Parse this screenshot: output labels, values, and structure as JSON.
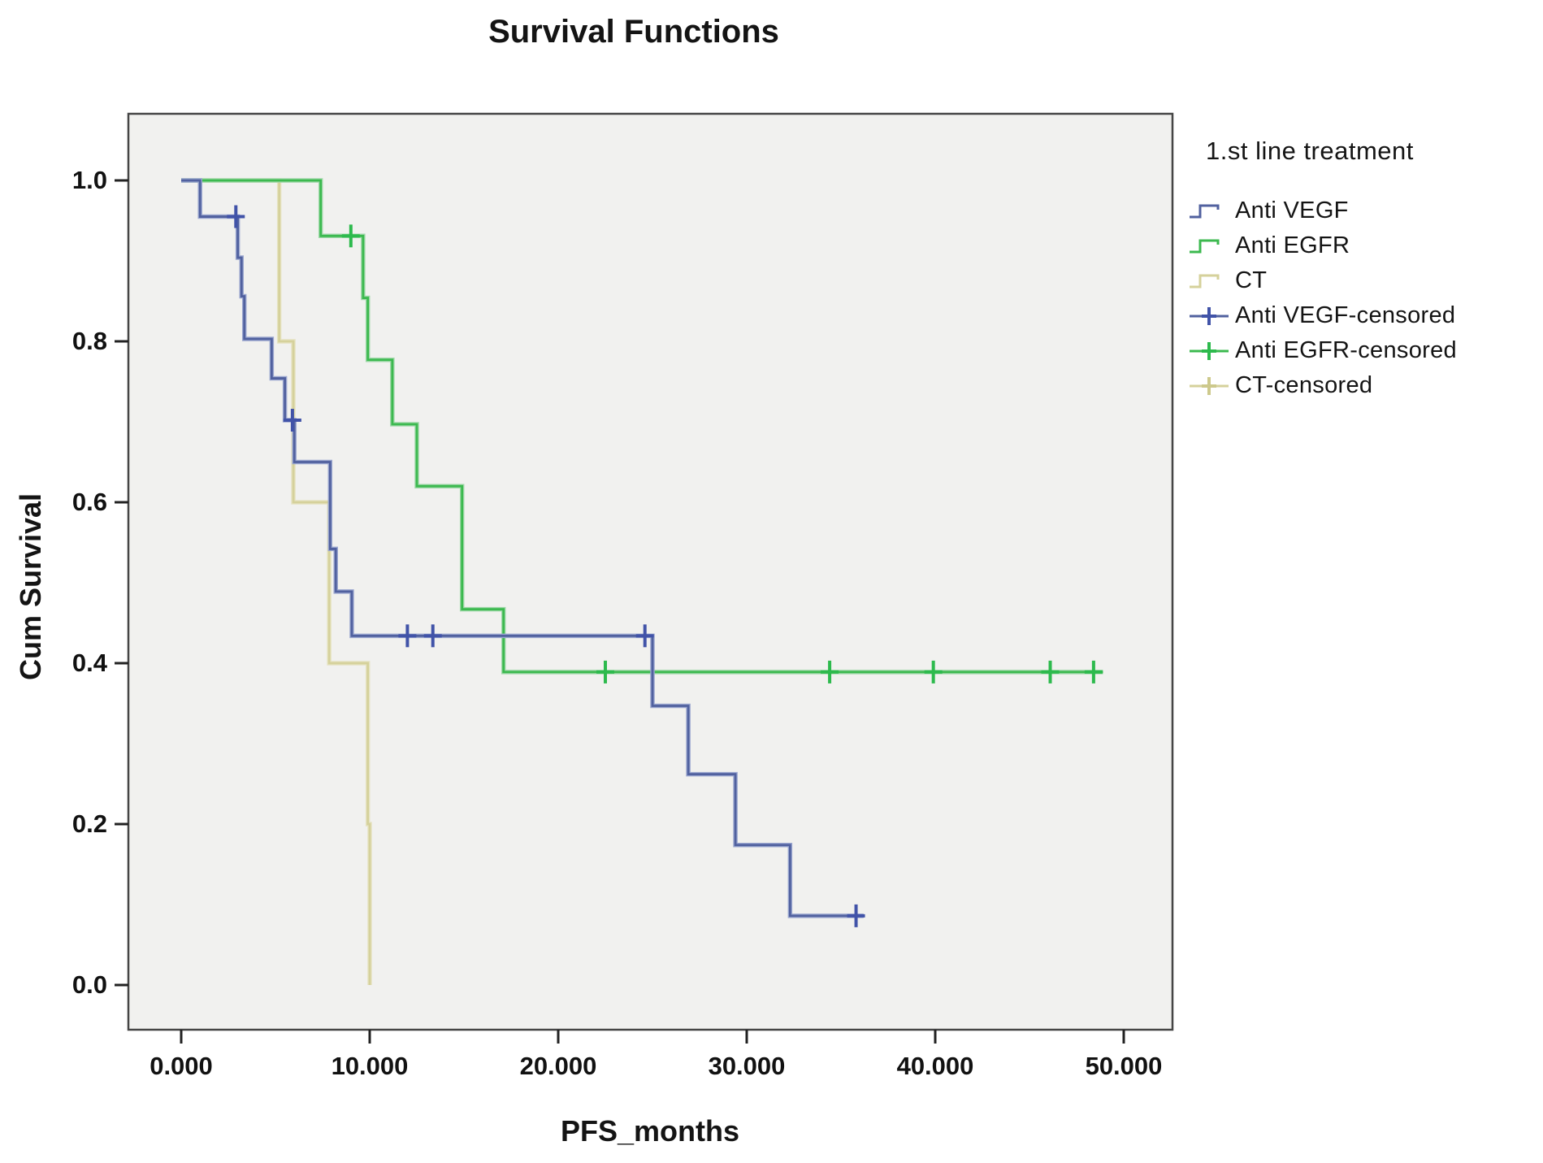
{
  "chart_data": {
    "type": "line",
    "subtype": "kaplan-meier-step",
    "title": "Survival Functions",
    "xlabel": "PFS_months",
    "ylabel": "Cum Survival",
    "xlim": [
      0,
      50
    ],
    "ylim": [
      0.0,
      1.0
    ],
    "grid": "off",
    "plot_background": "#f1f1ef",
    "frame_color": "#454545",
    "legend_position": "right",
    "legend_title": "1.st line treatment",
    "xticks": {
      "values": [
        0,
        10,
        20,
        30,
        40,
        50
      ],
      "labels": [
        "0.000",
        "10.000",
        "20.000",
        "30.000",
        "40.000",
        "50.000"
      ]
    },
    "yticks": {
      "values": [
        0.0,
        0.2,
        0.4,
        0.6,
        0.8,
        1.0
      ],
      "labels": [
        "0.0",
        "0.2",
        "0.4",
        "0.6",
        "0.8",
        "1.0"
      ]
    },
    "series": [
      {
        "name": "Anti VEGF",
        "color": "#51619f",
        "halo_color": "#9aa6cf",
        "censor_color": "#4153a8",
        "start": [
          0,
          1.0
        ],
        "events": [
          [
            1.0,
            0.955
          ],
          [
            3.0,
            0.904
          ],
          [
            3.2,
            0.856
          ],
          [
            3.35,
            0.803
          ],
          [
            4.8,
            0.754
          ],
          [
            5.5,
            0.702
          ],
          [
            6.0,
            0.65
          ],
          [
            7.9,
            0.542
          ],
          [
            8.2,
            0.489
          ],
          [
            9.05,
            0.434
          ],
          [
            25.0,
            0.347
          ],
          [
            26.9,
            0.262
          ],
          [
            29.4,
            0.174
          ],
          [
            32.3,
            0.086
          ]
        ],
        "end_time": 36.2,
        "censored": [
          [
            2.9,
            0.955
          ],
          [
            5.9,
            0.702
          ],
          [
            12.0,
            0.434
          ],
          [
            13.35,
            0.434
          ],
          [
            24.6,
            0.434
          ],
          [
            35.8,
            0.086
          ]
        ]
      },
      {
        "name": "Anti EGFR",
        "color": "#3cb94f",
        "halo_color": "#9fd8a8",
        "censor_color": "#2dba4d",
        "start": [
          0,
          1.0
        ],
        "events": [
          [
            7.4,
            0.931
          ],
          [
            9.65,
            0.854
          ],
          [
            9.9,
            0.777
          ],
          [
            11.2,
            0.697
          ],
          [
            12.5,
            0.62
          ],
          [
            14.9,
            0.467
          ],
          [
            17.1,
            0.389
          ]
        ],
        "end_time": 48.9,
        "censored": [
          [
            9.0,
            0.931
          ],
          [
            22.5,
            0.389
          ],
          [
            34.4,
            0.389
          ],
          [
            39.9,
            0.389
          ],
          [
            46.1,
            0.389
          ],
          [
            48.4,
            0.389
          ]
        ]
      },
      {
        "name": "CT",
        "color": "#d5d19b",
        "halo_color": "#e6e3c2",
        "censor_color": "#cdc98c",
        "start": [
          0,
          1.0
        ],
        "events": [
          [
            5.2,
            0.8
          ],
          [
            5.95,
            0.6
          ],
          [
            7.85,
            0.4
          ],
          [
            9.9,
            0.2
          ],
          [
            10.0,
            0.0
          ]
        ],
        "end_time": 10.0,
        "censored": []
      }
    ],
    "legend_items": [
      {
        "label": "Anti VEGF",
        "glyph": "line",
        "series": 0
      },
      {
        "label": "Anti EGFR",
        "glyph": "line",
        "series": 1
      },
      {
        "label": "CT",
        "glyph": "line",
        "series": 2
      },
      {
        "label": "Anti VEGF-censored",
        "glyph": "censor",
        "series": 0
      },
      {
        "label": "Anti EGFR-censored",
        "glyph": "censor",
        "series": 1
      },
      {
        "label": "CT-censored",
        "glyph": "censor",
        "series": 2
      }
    ]
  }
}
